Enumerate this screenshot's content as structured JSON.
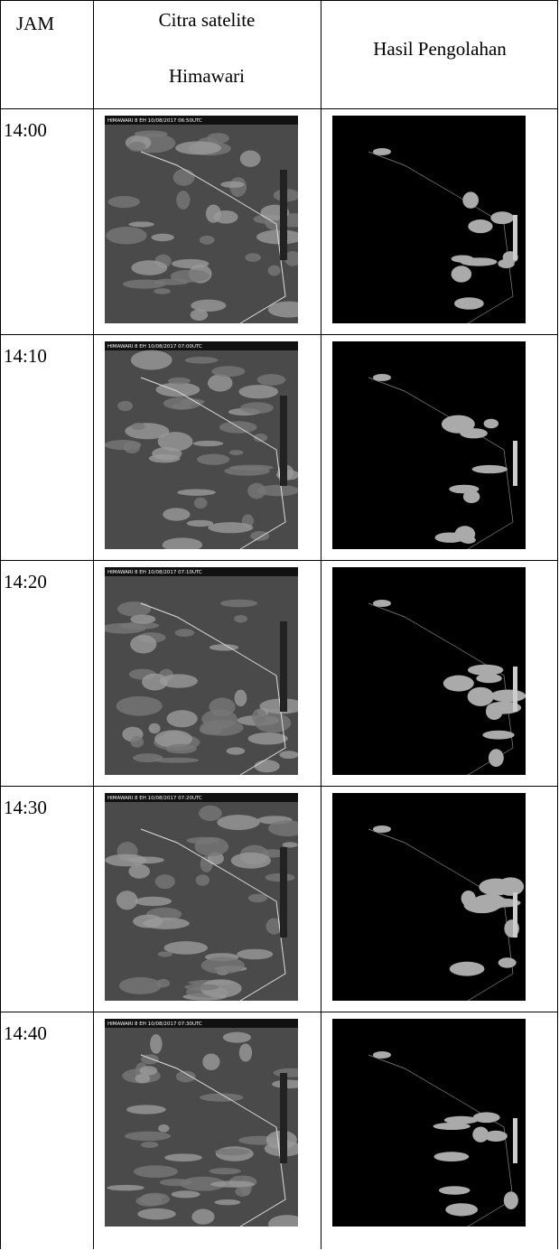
{
  "table": {
    "headers": {
      "jam": "JAM",
      "citra": [
        "Citra satelite",
        "Himawari"
      ],
      "hasil": "Hasil Pengolahan"
    },
    "rows": [
      {
        "time": "14:00",
        "satellite_label": "HIMAWARI 8 EH 10/08/2017 06:50UTC"
      },
      {
        "time": "14:10",
        "satellite_label": "HIMAWARI 8 EH 10/08/2017 07:00UTC"
      },
      {
        "time": "14:20",
        "satellite_label": "HIMAWARI 8 EH 10/08/2017 07:10UTC"
      },
      {
        "time": "14:30",
        "satellite_label": "HIMAWARI 8 EH 10/08/2017 07:20UTC"
      },
      {
        "time": "14:40",
        "satellite_label": "HIMAWARI 8 EH 10/08/2017 07:30UTC"
      }
    ]
  }
}
